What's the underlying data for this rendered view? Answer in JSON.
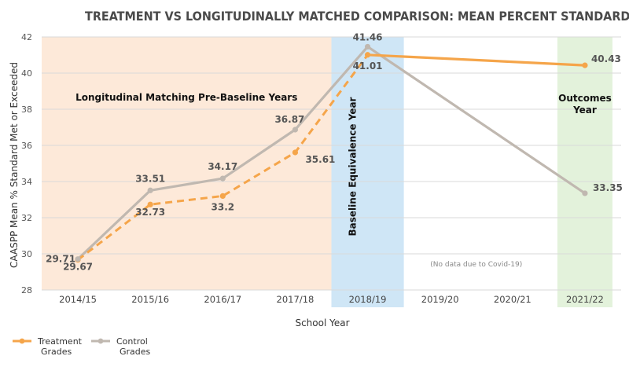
{
  "chart_data": {
    "type": "line",
    "title": "TREATMENT VS LONGITUDINALLY MATCHED COMPARISON: MEAN PERCENT STANDARD MET OR EXCEEDED",
    "xlabel": "School Year",
    "ylabel": "CAASPP Mean % Standard Met or Exceeded",
    "ylim": [
      28,
      42
    ],
    "yticks": [
      28,
      30,
      32,
      34,
      36,
      38,
      40,
      42
    ],
    "categories": [
      "2014/15",
      "2015/16",
      "2016/17",
      "2017/18",
      "2018/19",
      "2019/20",
      "2020/21",
      "2021/22"
    ],
    "series": [
      {
        "name": "Treatment Grades",
        "color": "#f5a54a",
        "values": [
          29.67,
          32.73,
          33.2,
          35.61,
          41.01,
          null,
          null,
          40.43
        ],
        "labels": [
          "29.67",
          "32.73",
          "33.2",
          "35.61",
          "41.01",
          "",
          "",
          "40.43"
        ]
      },
      {
        "name": "Control Grades",
        "color": "#c0b8b0",
        "values": [
          29.71,
          33.51,
          34.17,
          36.87,
          41.46,
          null,
          null,
          33.35
        ],
        "labels": [
          "29.71",
          "33.51",
          "34.17",
          "36.87",
          "41.46",
          "",
          "",
          "33.35"
        ]
      }
    ],
    "regions": [
      {
        "name": "pre-baseline",
        "label": "Longitudinal Matching Pre-Baseline Years",
        "from": "2014/15",
        "to": "2017/18",
        "color": "#fde9d9"
      },
      {
        "name": "baseline",
        "label": "Baseline Equivalence Year",
        "from": "2018/19",
        "to": "2018/19",
        "color": "#cfe6f6"
      },
      {
        "name": "outcomes",
        "label_lines": [
          "Outcomes",
          "Year"
        ],
        "from": "2021/22",
        "to": "2021/22",
        "color": "#e3f2db"
      }
    ],
    "annotations": [
      "(No data due to Covid-19)"
    ],
    "legend": {
      "position": "bottom-left",
      "entries": [
        {
          "lines": [
            "Treatment",
            "Grades"
          ],
          "color": "#f5a54a"
        },
        {
          "lines": [
            "Control",
            "Grades"
          ],
          "color": "#c0b8b0"
        }
      ]
    }
  }
}
